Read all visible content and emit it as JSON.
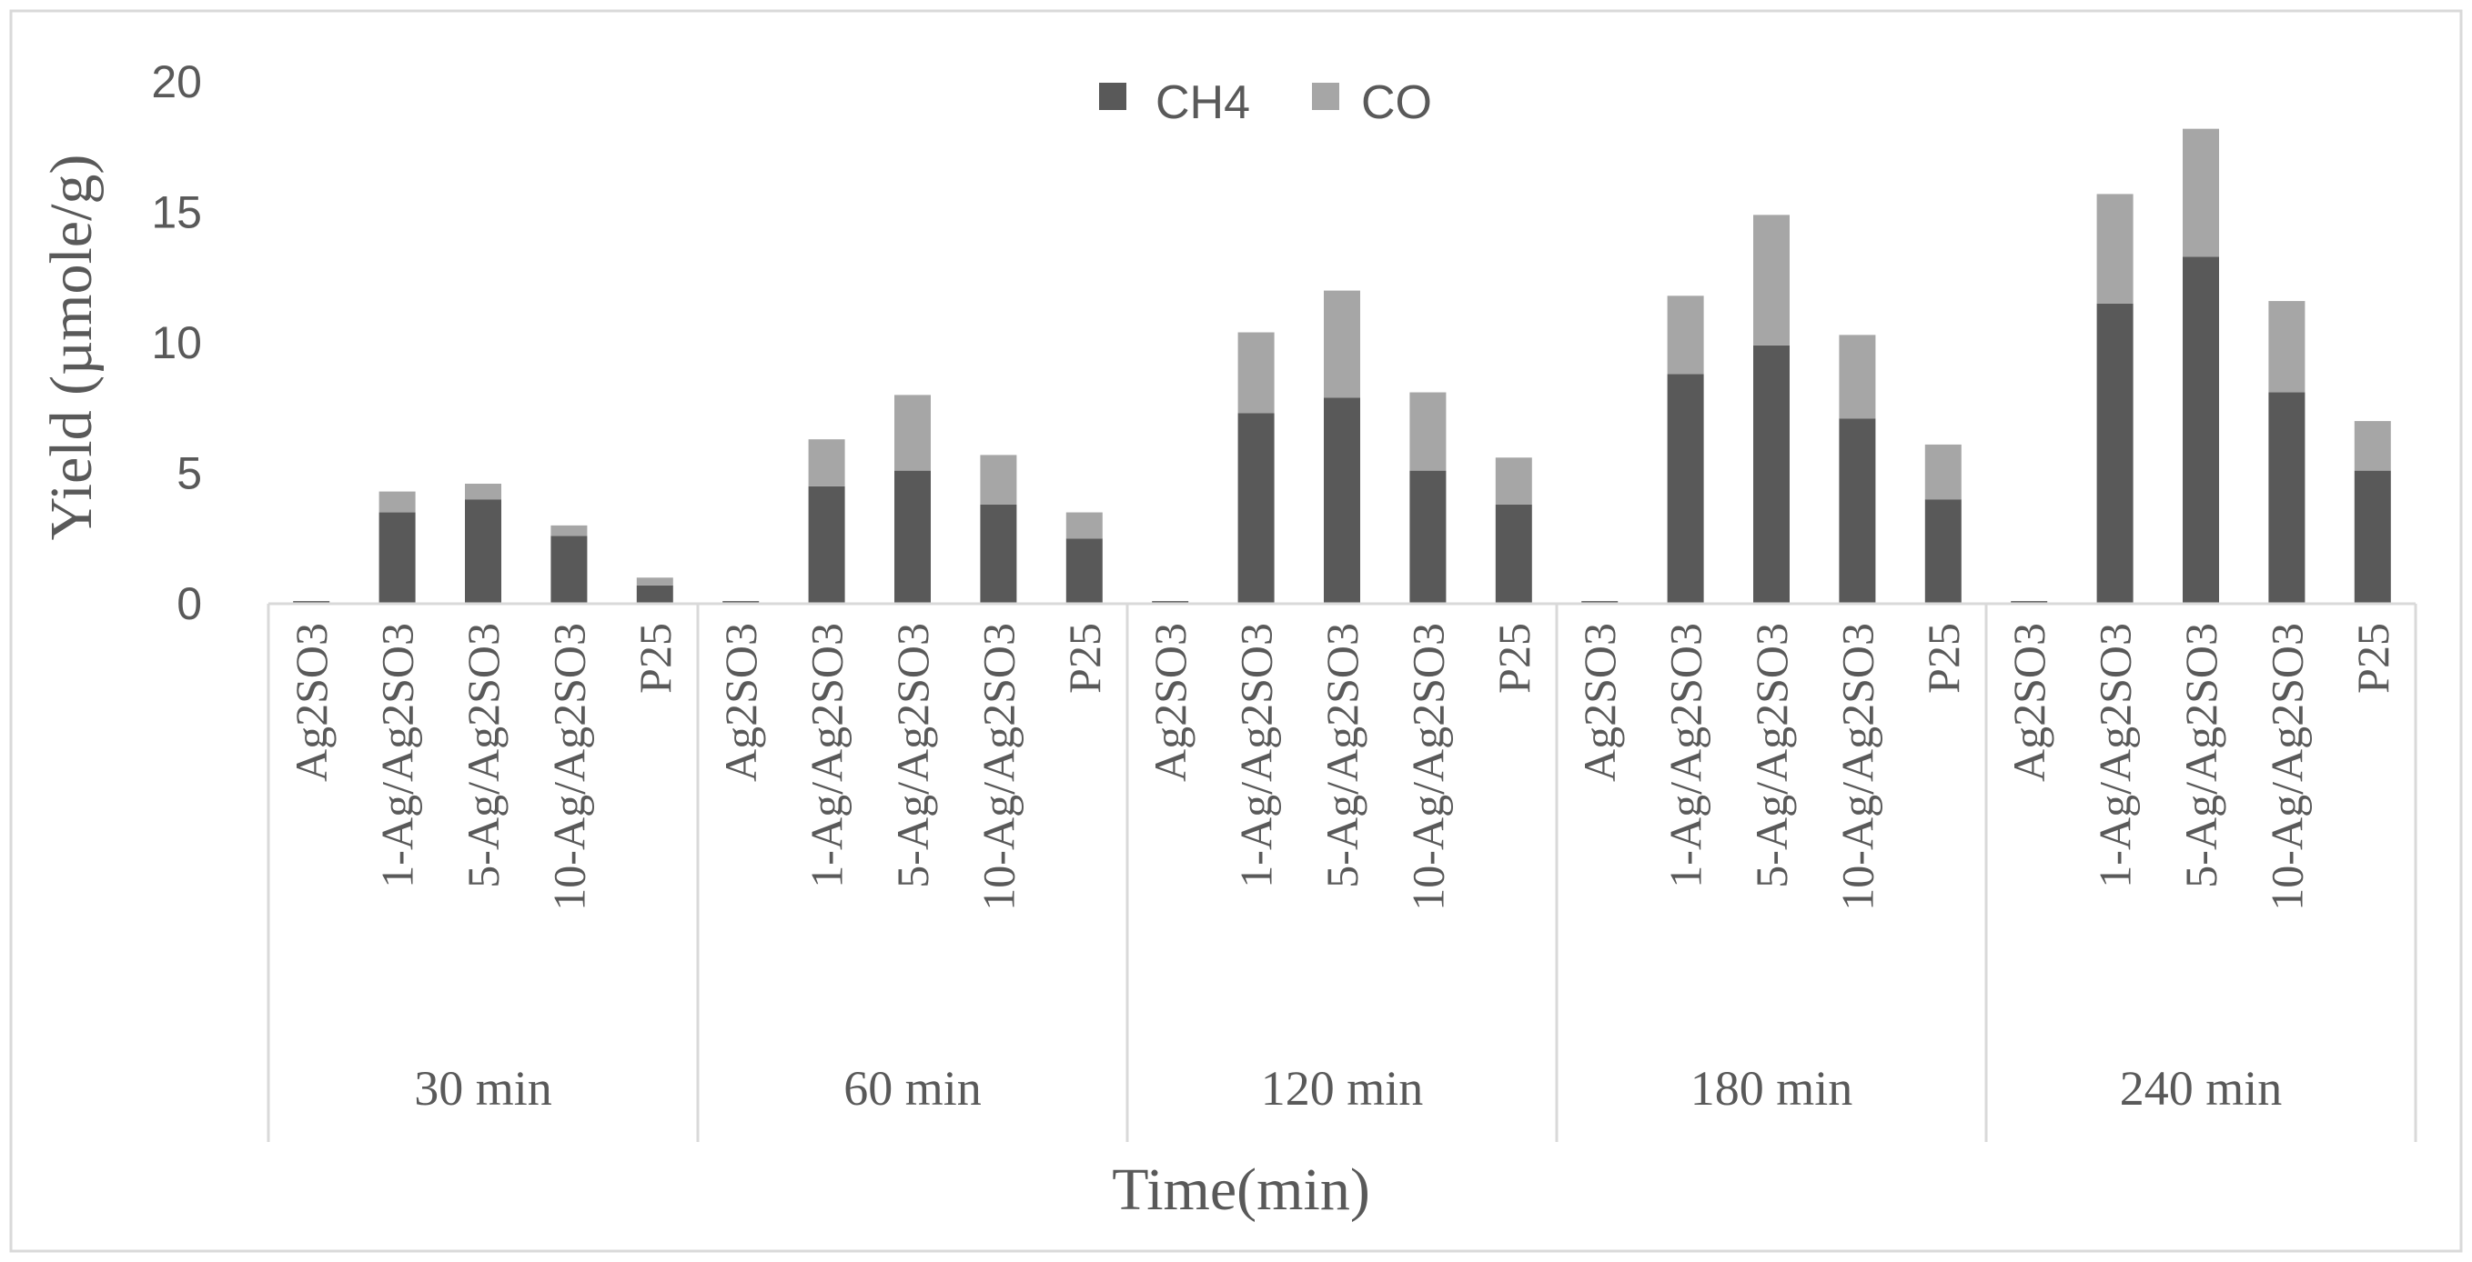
{
  "chart_data": {
    "type": "bar",
    "stacked": true,
    "ylabel": "Yield (µmole/g)",
    "xlabel": "Time(min)",
    "ylim": [
      0,
      20
    ],
    "yticks": [
      "0",
      "5",
      "10",
      "15",
      "20"
    ],
    "grid": false,
    "legend_position": "top-center",
    "groups": [
      "30 min",
      "60 min",
      "120 min",
      "180 min",
      "240 min"
    ],
    "categories": [
      "Ag2SO3",
      "1-Ag/Ag2SO3",
      "5-Ag/Ag2SO3",
      "10-Ag/Ag2SO3",
      "P25"
    ],
    "series": [
      {
        "name": "CH4",
        "color": "#595959",
        "values": [
          [
            0.1,
            3.5,
            4.0,
            2.6,
            0.7
          ],
          [
            0.1,
            4.5,
            5.1,
            3.8,
            2.5
          ],
          [
            0.1,
            7.3,
            7.9,
            5.1,
            3.8
          ],
          [
            0.1,
            8.8,
            9.9,
            7.1,
            4.0
          ],
          [
            0.1,
            11.5,
            13.3,
            8.1,
            5.1
          ]
        ]
      },
      {
        "name": "CO",
        "color": "#a6a6a6",
        "values": [
          [
            0.0,
            0.8,
            0.6,
            0.4,
            0.3
          ],
          [
            0.0,
            1.8,
            2.9,
            1.9,
            1.0
          ],
          [
            0.0,
            3.1,
            4.1,
            3.0,
            1.8
          ],
          [
            0.0,
            3.0,
            5.0,
            3.2,
            2.1
          ],
          [
            0.0,
            4.2,
            4.9,
            3.5,
            1.9
          ]
        ]
      }
    ]
  }
}
